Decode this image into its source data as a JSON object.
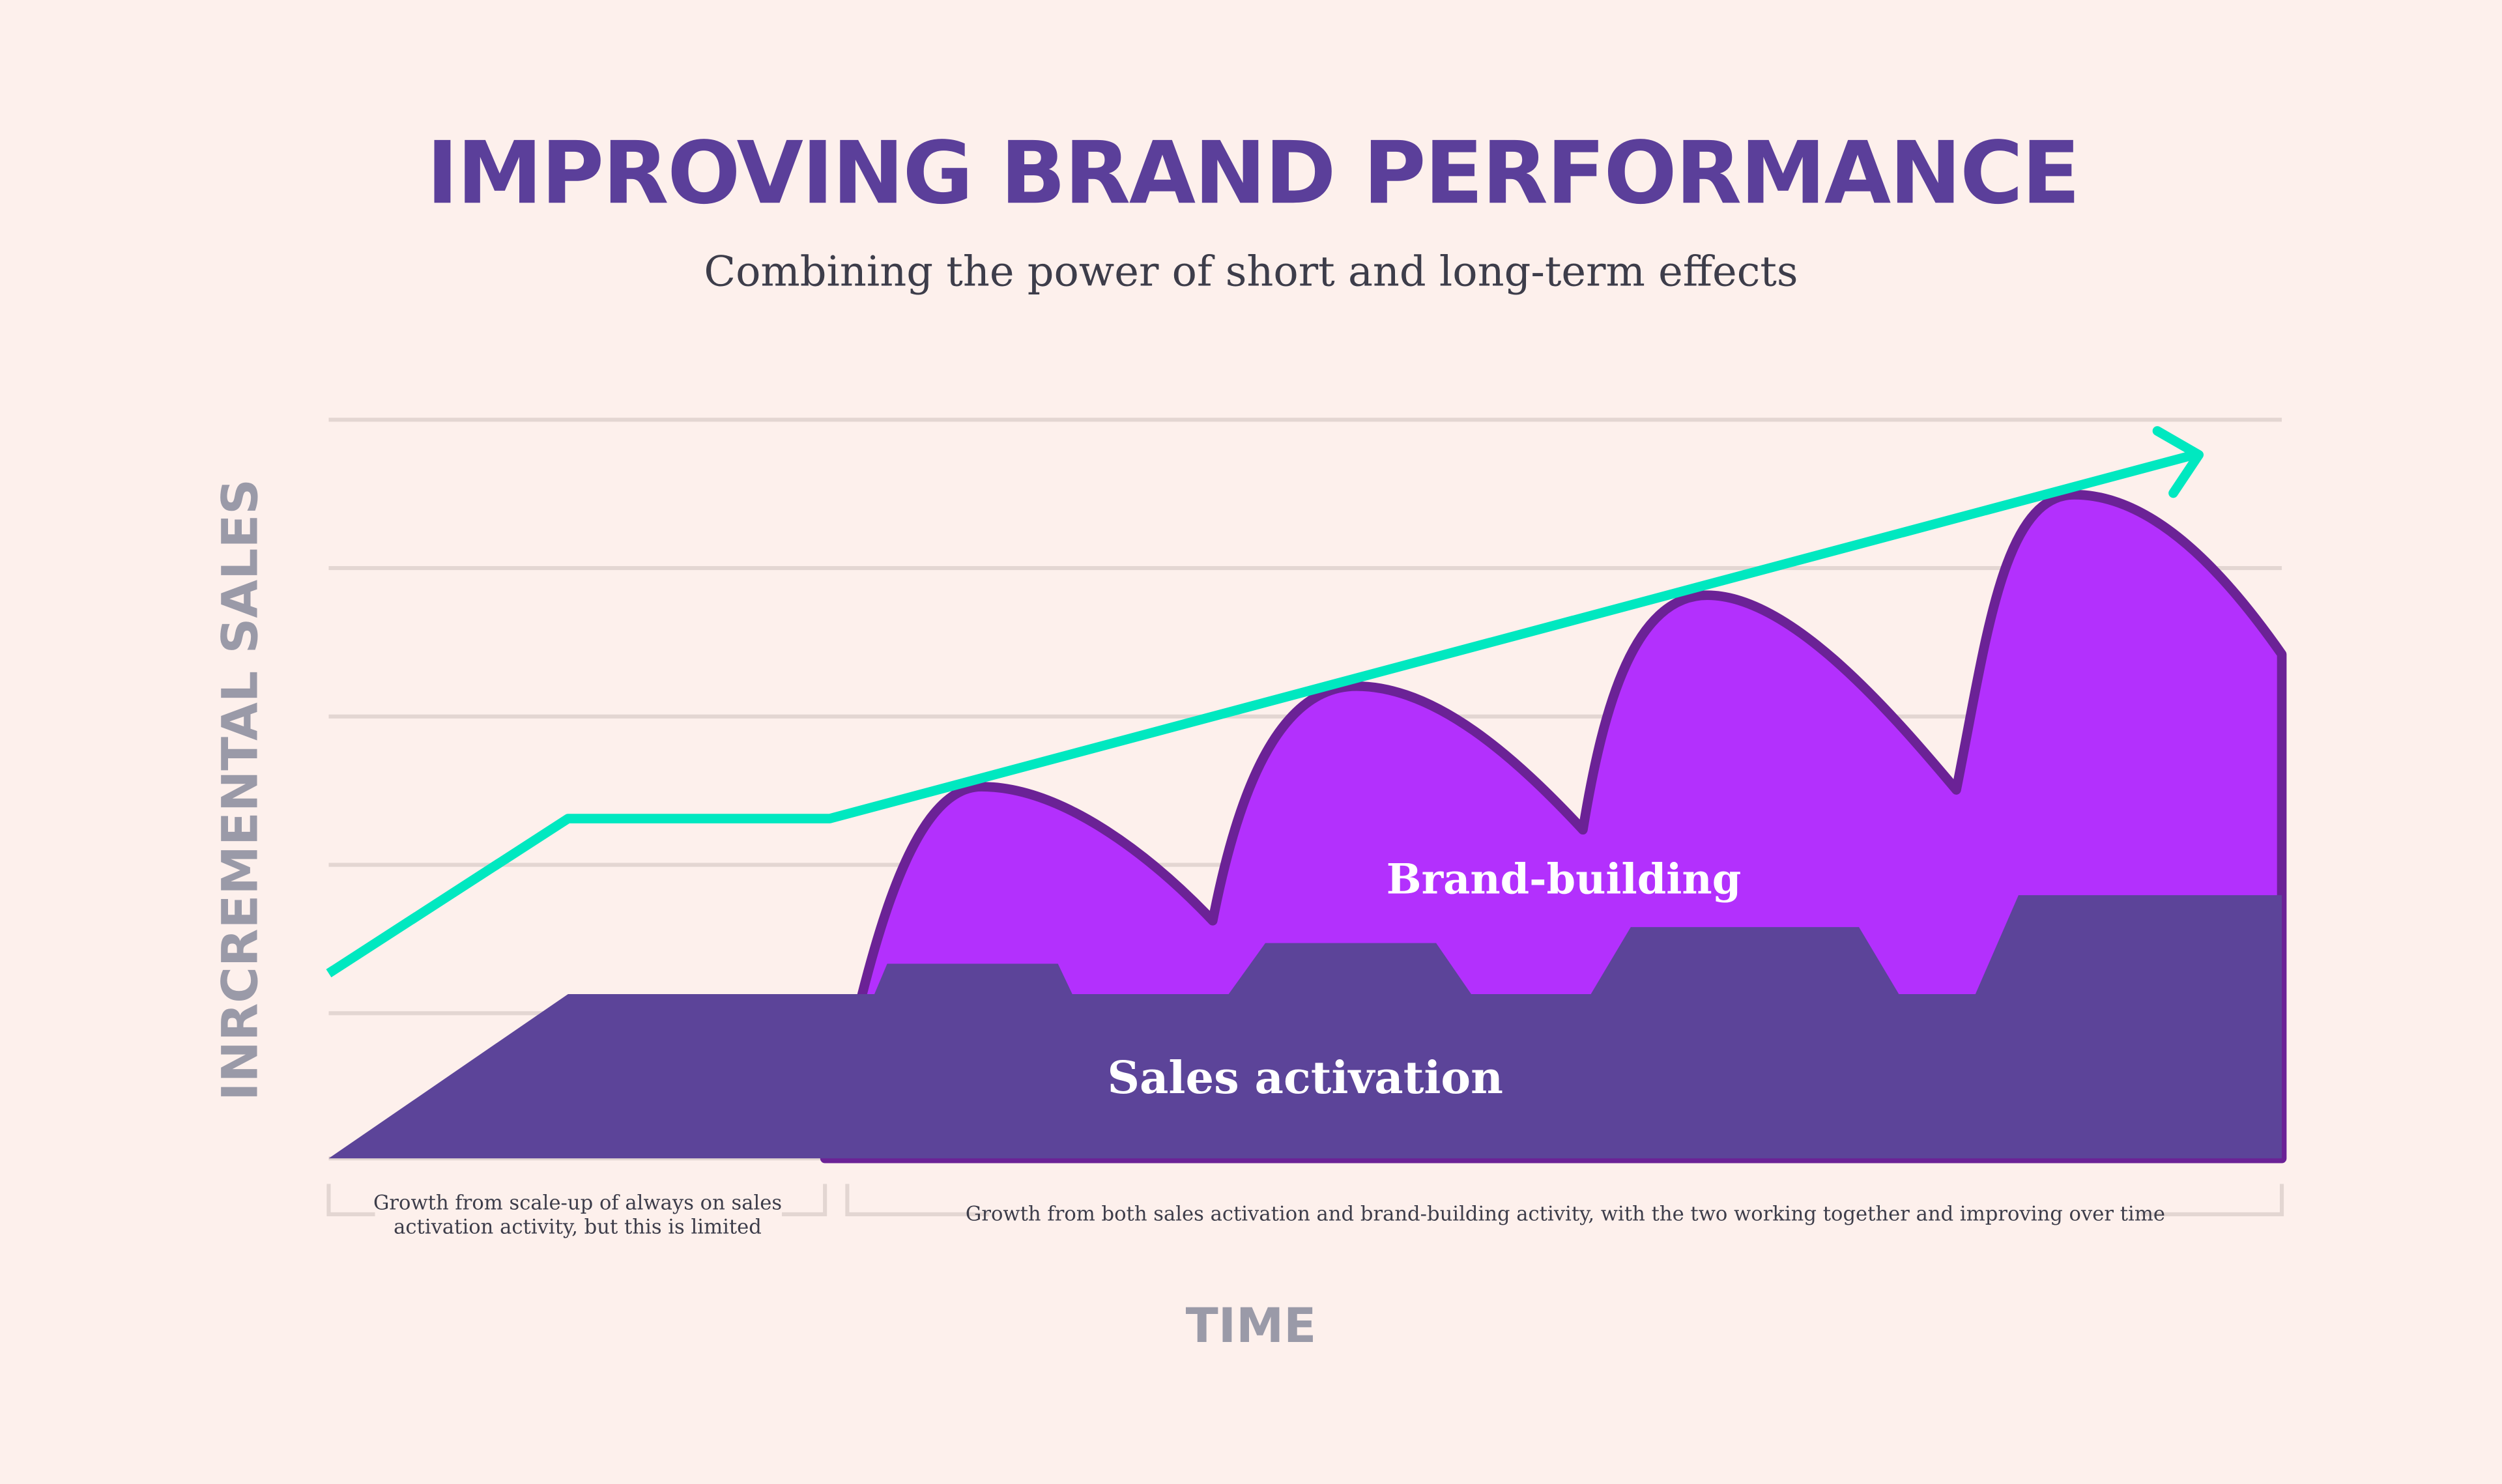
{
  "chart_data": {
    "type": "area",
    "title": "IMPROVING BRAND PERFORMANCE",
    "subtitle": "Combining the power of short and long-term effects",
    "xlabel": "TIME",
    "ylabel": "INRCREMENTAL SALES",
    "grid": true,
    "series": [
      {
        "name": "Brand-building",
        "color": "#b330fd",
        "outline": "#6b2296"
      },
      {
        "name": "Sales activation",
        "color": "#5c4499"
      }
    ],
    "trend_line_color": "#00e8c0",
    "annotations": [
      {
        "line1": "Growth from scale-up of always on sales",
        "line2": "activation activity, but this is limited"
      },
      {
        "line1": "Growth from both sales activation and brand-building activity, with the two working together and improving over time"
      }
    ]
  },
  "background": "#fdf0ec"
}
